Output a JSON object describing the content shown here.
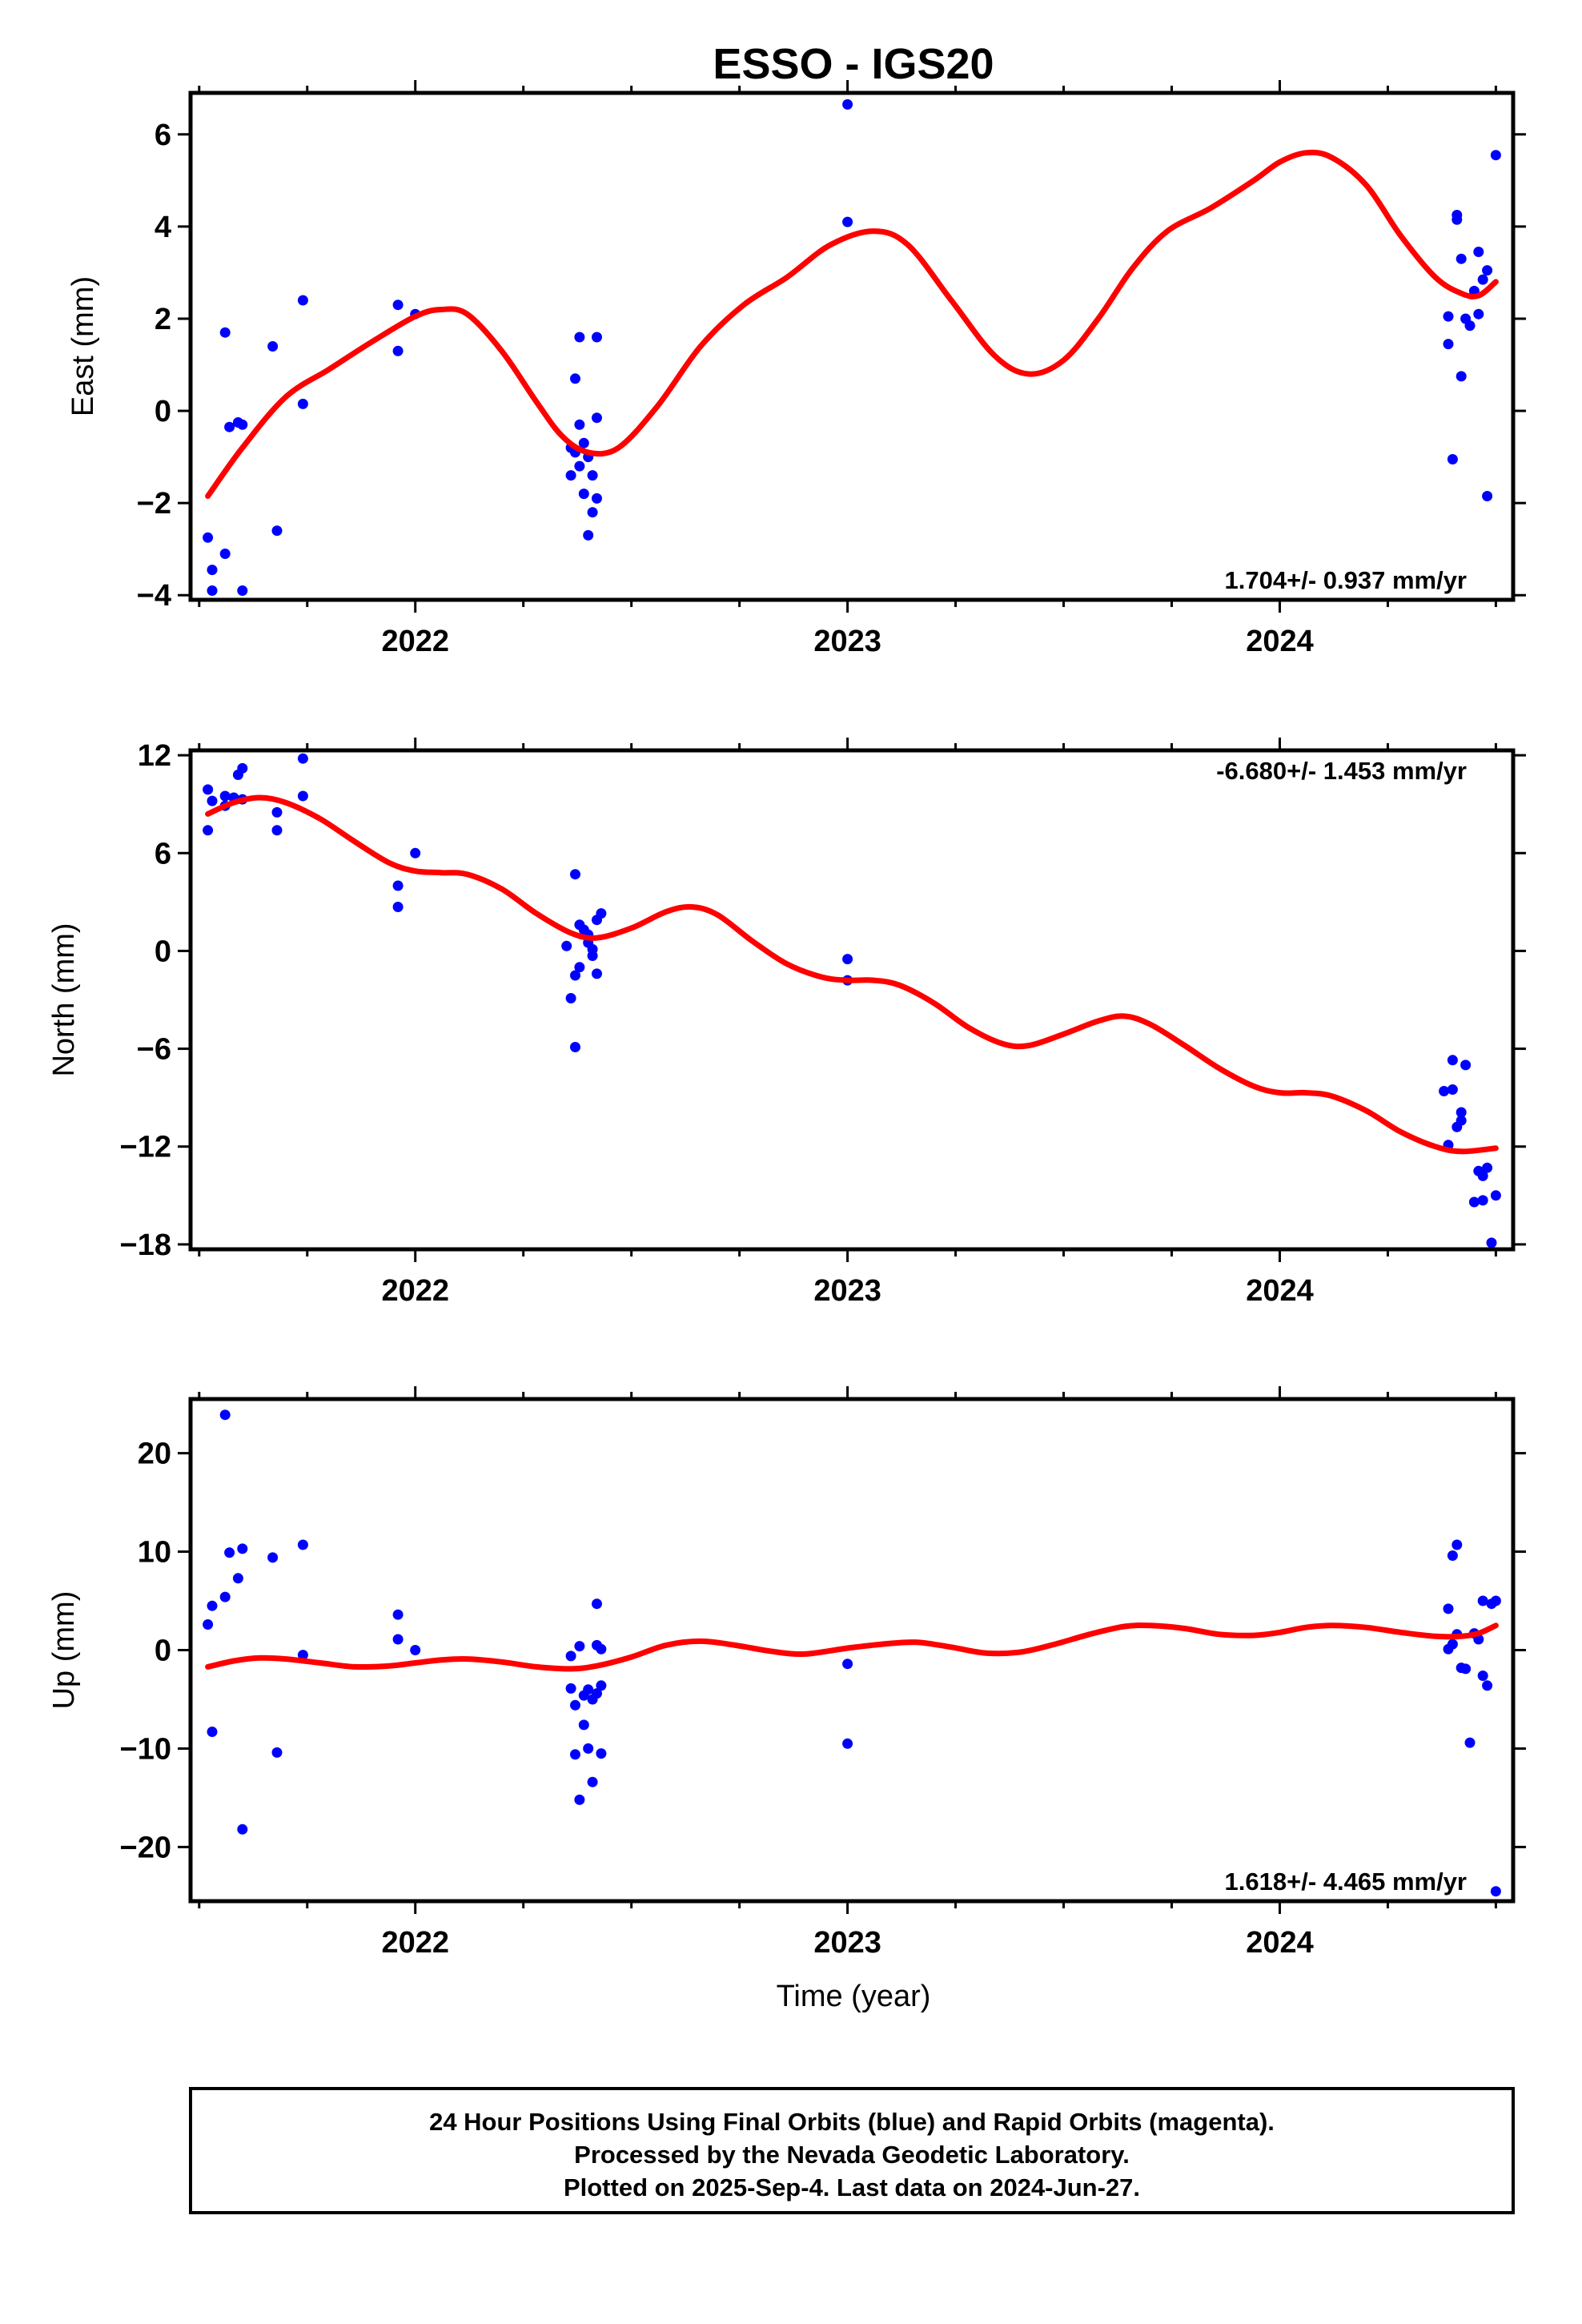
{
  "footer": {
    "line1": "24 Hour Positions Using Final Orbits (blue) and Rapid Orbits (magenta).",
    "line2": "Processed by the Nevada Geodetic Laboratory.",
    "line3": "Plotted on 2025-Sep-4. Last data on 2024-Jun-27."
  },
  "colors": {
    "points": "#0000ff",
    "fit": "#ff0000",
    "frame": "#000000"
  },
  "chart_data": [
    {
      "type": "scatter",
      "title": "ESSO - IGS20",
      "ylabel": "East (mm)",
      "xlabel": "",
      "xlim": [
        2021.48,
        2024.54
      ],
      "ylim": [
        -4.1,
        6.9
      ],
      "yticks": [
        -4,
        -2,
        0,
        2,
        4,
        6
      ],
      "ytick_labels": [
        "−4",
        "−2",
        "0",
        "2",
        "4",
        "6"
      ],
      "xticks": [
        2022,
        2023,
        2024
      ],
      "rate_label": "1.704+/- 0.937 mm/yr",
      "rate_position": "bottom-right",
      "points": [
        [
          2021.52,
          -2.75
        ],
        [
          2021.53,
          -3.45
        ],
        [
          2021.53,
          -3.9
        ],
        [
          2021.56,
          1.7
        ],
        [
          2021.56,
          -3.1
        ],
        [
          2021.57,
          -0.35
        ],
        [
          2021.59,
          -0.25
        ],
        [
          2021.6,
          -0.3
        ],
        [
          2021.6,
          -3.9
        ],
        [
          2021.67,
          1.4
        ],
        [
          2021.68,
          -2.6
        ],
        [
          2021.74,
          2.4
        ],
        [
          2021.74,
          0.15
        ],
        [
          2021.96,
          2.3
        ],
        [
          2021.96,
          1.3
        ],
        [
          2022.0,
          2.1
        ],
        [
          2022.36,
          -0.8
        ],
        [
          2022.36,
          -1.4
        ],
        [
          2022.37,
          0.7
        ],
        [
          2022.37,
          -0.9
        ],
        [
          2022.38,
          1.6
        ],
        [
          2022.38,
          -0.3
        ],
        [
          2022.38,
          -1.2
        ],
        [
          2022.39,
          -0.7
        ],
        [
          2022.39,
          -1.8
        ],
        [
          2022.4,
          -2.7
        ],
        [
          2022.4,
          -1.0
        ],
        [
          2022.41,
          -2.2
        ],
        [
          2022.41,
          -1.4
        ],
        [
          2022.42,
          -0.15
        ],
        [
          2022.42,
          1.6
        ],
        [
          2022.42,
          -1.9
        ],
        [
          2023.0,
          6.65
        ],
        [
          2023.0,
          4.1
        ],
        [
          2024.39,
          1.45
        ],
        [
          2024.39,
          2.05
        ],
        [
          2024.4,
          -1.05
        ],
        [
          2024.41,
          4.25
        ],
        [
          2024.41,
          4.15
        ],
        [
          2024.42,
          0.75
        ],
        [
          2024.42,
          3.3
        ],
        [
          2024.43,
          2.0
        ],
        [
          2024.44,
          1.85
        ],
        [
          2024.45,
          2.6
        ],
        [
          2024.46,
          2.1
        ],
        [
          2024.46,
          3.45
        ],
        [
          2024.47,
          2.85
        ],
        [
          2024.48,
          3.05
        ],
        [
          2024.48,
          -1.85
        ],
        [
          2024.5,
          5.55
        ]
      ],
      "fit": [
        [
          2021.52,
          -1.85
        ],
        [
          2021.6,
          -0.8
        ],
        [
          2021.7,
          0.3
        ],
        [
          2021.8,
          0.9
        ],
        [
          2021.9,
          1.5
        ],
        [
          2022.0,
          2.05
        ],
        [
          2022.06,
          2.2
        ],
        [
          2022.12,
          2.1
        ],
        [
          2022.2,
          1.3
        ],
        [
          2022.28,
          0.2
        ],
        [
          2022.34,
          -0.55
        ],
        [
          2022.4,
          -0.9
        ],
        [
          2022.47,
          -0.8
        ],
        [
          2022.56,
          0.1
        ],
        [
          2022.66,
          1.4
        ],
        [
          2022.76,
          2.3
        ],
        [
          2022.86,
          2.9
        ],
        [
          2022.96,
          3.6
        ],
        [
          2023.06,
          3.9
        ],
        [
          2023.14,
          3.6
        ],
        [
          2023.24,
          2.4
        ],
        [
          2023.34,
          1.2
        ],
        [
          2023.42,
          0.8
        ],
        [
          2023.5,
          1.1
        ],
        [
          2023.58,
          2.0
        ],
        [
          2023.66,
          3.1
        ],
        [
          2023.74,
          3.9
        ],
        [
          2023.84,
          4.4
        ],
        [
          2023.94,
          5.0
        ],
        [
          2024.0,
          5.4
        ],
        [
          2024.06,
          5.6
        ],
        [
          2024.12,
          5.5
        ],
        [
          2024.2,
          4.9
        ],
        [
          2024.28,
          3.8
        ],
        [
          2024.36,
          2.9
        ],
        [
          2024.42,
          2.55
        ],
        [
          2024.46,
          2.5
        ],
        [
          2024.5,
          2.8
        ]
      ]
    },
    {
      "type": "scatter",
      "title": "",
      "ylabel": "North (mm)",
      "xlabel": "",
      "xlim": [
        2021.48,
        2024.54
      ],
      "ylim": [
        -18.3,
        12.3
      ],
      "yticks": [
        -18,
        -12,
        -6,
        0,
        6,
        12
      ],
      "ytick_labels": [
        "−18",
        "−12",
        "−6",
        "0",
        "6",
        "12"
      ],
      "xticks": [
        2022,
        2023,
        2024
      ],
      "rate_label": "-6.680+/- 1.453 mm/yr",
      "rate_position": "top-right",
      "points": [
        [
          2021.52,
          9.9
        ],
        [
          2021.52,
          7.4
        ],
        [
          2021.53,
          9.2
        ],
        [
          2021.56,
          9.5
        ],
        [
          2021.56,
          8.9
        ],
        [
          2021.58,
          9.4
        ],
        [
          2021.59,
          10.8
        ],
        [
          2021.6,
          11.2
        ],
        [
          2021.6,
          9.3
        ],
        [
          2021.68,
          8.5
        ],
        [
          2021.68,
          7.4
        ],
        [
          2021.74,
          11.8
        ],
        [
          2021.74,
          9.5
        ],
        [
          2021.96,
          4.0
        ],
        [
          2021.96,
          2.7
        ],
        [
          2022.0,
          6.0
        ],
        [
          2022.35,
          0.3
        ],
        [
          2022.36,
          -2.9
        ],
        [
          2022.37,
          -5.9
        ],
        [
          2022.37,
          -1.5
        ],
        [
          2022.37,
          4.7
        ],
        [
          2022.38,
          1.6
        ],
        [
          2022.38,
          -1.0
        ],
        [
          2022.39,
          1.3
        ],
        [
          2022.4,
          0.5
        ],
        [
          2022.4,
          1.0
        ],
        [
          2022.41,
          -0.3
        ],
        [
          2022.41,
          0.1
        ],
        [
          2022.42,
          -1.4
        ],
        [
          2022.42,
          1.9
        ],
        [
          2022.43,
          2.3
        ],
        [
          2023.0,
          -0.5
        ],
        [
          2023.0,
          -1.8
        ],
        [
          2024.38,
          -8.6
        ],
        [
          2024.39,
          -11.9
        ],
        [
          2024.4,
          -6.7
        ],
        [
          2024.4,
          -8.5
        ],
        [
          2024.41,
          -10.8
        ],
        [
          2024.42,
          -10.4
        ],
        [
          2024.42,
          -9.9
        ],
        [
          2024.43,
          -7.0
        ],
        [
          2024.45,
          -15.4
        ],
        [
          2024.46,
          -13.5
        ],
        [
          2024.47,
          -13.8
        ],
        [
          2024.47,
          -15.3
        ],
        [
          2024.48,
          -13.3
        ],
        [
          2024.49,
          -17.9
        ],
        [
          2024.5,
          -15.0
        ]
      ],
      "fit": [
        [
          2021.52,
          8.4
        ],
        [
          2021.58,
          9.1
        ],
        [
          2021.64,
          9.4
        ],
        [
          2021.7,
          9.1
        ],
        [
          2021.78,
          8.1
        ],
        [
          2021.86,
          6.7
        ],
        [
          2021.94,
          5.4
        ],
        [
          2022.0,
          4.9
        ],
        [
          2022.06,
          4.8
        ],
        [
          2022.12,
          4.7
        ],
        [
          2022.2,
          3.8
        ],
        [
          2022.28,
          2.3
        ],
        [
          2022.36,
          1.1
        ],
        [
          2022.42,
          0.8
        ],
        [
          2022.5,
          1.4
        ],
        [
          2022.58,
          2.4
        ],
        [
          2022.64,
          2.7
        ],
        [
          2022.7,
          2.2
        ],
        [
          2022.78,
          0.6
        ],
        [
          2022.86,
          -0.8
        ],
        [
          2022.94,
          -1.6
        ],
        [
          2023.0,
          -1.8
        ],
        [
          2023.06,
          -1.8
        ],
        [
          2023.12,
          -2.1
        ],
        [
          2023.2,
          -3.2
        ],
        [
          2023.28,
          -4.7
        ],
        [
          2023.36,
          -5.7
        ],
        [
          2023.42,
          -5.8
        ],
        [
          2023.5,
          -5.1
        ],
        [
          2023.58,
          -4.3
        ],
        [
          2023.64,
          -4.0
        ],
        [
          2023.7,
          -4.5
        ],
        [
          2023.78,
          -5.8
        ],
        [
          2023.86,
          -7.2
        ],
        [
          2023.94,
          -8.3
        ],
        [
          2024.0,
          -8.7
        ],
        [
          2024.06,
          -8.7
        ],
        [
          2024.12,
          -8.9
        ],
        [
          2024.2,
          -9.8
        ],
        [
          2024.28,
          -11.1
        ],
        [
          2024.36,
          -12.0
        ],
        [
          2024.42,
          -12.3
        ],
        [
          2024.5,
          -12.1
        ]
      ]
    },
    {
      "type": "scatter",
      "title": "",
      "ylabel": "Up (mm)",
      "xlabel": "Time (year)",
      "xlim": [
        2021.48,
        2024.54
      ],
      "ylim": [
        -25.5,
        25.5
      ],
      "yticks": [
        -20,
        -10,
        0,
        10,
        20
      ],
      "ytick_labels": [
        "−20",
        "−10",
        "0",
        "10",
        "20"
      ],
      "xticks": [
        2022,
        2023,
        2024
      ],
      "rate_label": "1.618+/- 4.465 mm/yr",
      "rate_position": "bottom-right",
      "points": [
        [
          2021.52,
          2.6
        ],
        [
          2021.53,
          4.5
        ],
        [
          2021.53,
          -8.3
        ],
        [
          2021.56,
          23.9
        ],
        [
          2021.56,
          5.4
        ],
        [
          2021.57,
          9.9
        ],
        [
          2021.59,
          7.3
        ],
        [
          2021.6,
          10.3
        ],
        [
          2021.6,
          -18.2
        ],
        [
          2021.67,
          9.4
        ],
        [
          2021.68,
          -10.4
        ],
        [
          2021.74,
          10.7
        ],
        [
          2021.74,
          -0.5
        ],
        [
          2021.96,
          3.6
        ],
        [
          2021.96,
          1.1
        ],
        [
          2022.0,
          0.0
        ],
        [
          2022.36,
          -3.9
        ],
        [
          2022.36,
          -0.6
        ],
        [
          2022.37,
          -10.6
        ],
        [
          2022.37,
          -5.6
        ],
        [
          2022.38,
          0.4
        ],
        [
          2022.38,
          -15.2
        ],
        [
          2022.39,
          -7.6
        ],
        [
          2022.39,
          -4.6
        ],
        [
          2022.4,
          -10.0
        ],
        [
          2022.4,
          -4.0
        ],
        [
          2022.41,
          -13.4
        ],
        [
          2022.41,
          -5.0
        ],
        [
          2022.42,
          -4.4
        ],
        [
          2022.42,
          4.7
        ],
        [
          2022.42,
          0.5
        ],
        [
          2022.43,
          -3.6
        ],
        [
          2022.43,
          -10.5
        ],
        [
          2022.43,
          0.1
        ],
        [
          2023.0,
          -1.4
        ],
        [
          2023.0,
          -9.5
        ],
        [
          2024.39,
          0.1
        ],
        [
          2024.39,
          4.2
        ],
        [
          2024.4,
          0.6
        ],
        [
          2024.4,
          9.6
        ],
        [
          2024.41,
          1.6
        ],
        [
          2024.41,
          10.7
        ],
        [
          2024.42,
          -1.8
        ],
        [
          2024.43,
          -1.9
        ],
        [
          2024.44,
          -9.4
        ],
        [
          2024.45,
          1.7
        ],
        [
          2024.46,
          1.1
        ],
        [
          2024.47,
          5.0
        ],
        [
          2024.47,
          -2.6
        ],
        [
          2024.48,
          -3.6
        ],
        [
          2024.49,
          4.7
        ],
        [
          2024.5,
          5.0
        ],
        [
          2024.5,
          -24.5
        ]
      ],
      "fit": [
        [
          2021.52,
          -1.7
        ],
        [
          2021.58,
          -1.1
        ],
        [
          2021.64,
          -0.8
        ],
        [
          2021.7,
          -0.9
        ],
        [
          2021.78,
          -1.3
        ],
        [
          2021.86,
          -1.7
        ],
        [
          2021.94,
          -1.6
        ],
        [
          2022.0,
          -1.3
        ],
        [
          2022.06,
          -1.0
        ],
        [
          2022.12,
          -0.9
        ],
        [
          2022.2,
          -1.2
        ],
        [
          2022.28,
          -1.7
        ],
        [
          2022.36,
          -1.9
        ],
        [
          2022.42,
          -1.6
        ],
        [
          2022.5,
          -0.7
        ],
        [
          2022.58,
          0.5
        ],
        [
          2022.66,
          0.9
        ],
        [
          2022.74,
          0.5
        ],
        [
          2022.82,
          -0.1
        ],
        [
          2022.9,
          -0.4
        ],
        [
          2023.0,
          0.2
        ],
        [
          2023.08,
          0.6
        ],
        [
          2023.16,
          0.8
        ],
        [
          2023.24,
          0.3
        ],
        [
          2023.32,
          -0.3
        ],
        [
          2023.4,
          -0.2
        ],
        [
          2023.48,
          0.6
        ],
        [
          2023.56,
          1.6
        ],
        [
          2023.64,
          2.4
        ],
        [
          2023.7,
          2.5
        ],
        [
          2023.78,
          2.2
        ],
        [
          2023.86,
          1.6
        ],
        [
          2023.94,
          1.5
        ],
        [
          2024.0,
          1.8
        ],
        [
          2024.06,
          2.3
        ],
        [
          2024.12,
          2.5
        ],
        [
          2024.2,
          2.3
        ],
        [
          2024.28,
          1.8
        ],
        [
          2024.36,
          1.4
        ],
        [
          2024.42,
          1.4
        ],
        [
          2024.46,
          1.7
        ],
        [
          2024.5,
          2.5
        ]
      ]
    }
  ]
}
